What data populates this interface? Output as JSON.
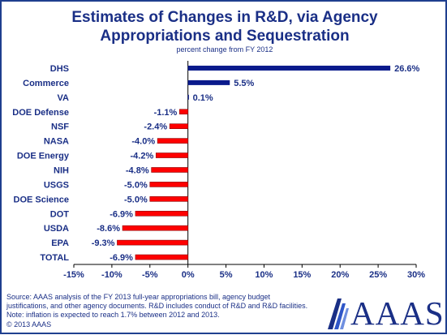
{
  "chart_data": {
    "type": "bar",
    "orientation": "horizontal",
    "title_line1": "Estimates of Changes in R&D, via Agency",
    "title_line2": "Appropriations and Sequestration",
    "subtitle": "percent change from FY 2012",
    "categories": [
      "DHS",
      "Commerce",
      "VA",
      "DOE Defense",
      "NSF",
      "NASA",
      "DOE Energy",
      "NIH",
      "USGS",
      "DOE Science",
      "DOT",
      "USDA",
      "EPA",
      "TOTAL"
    ],
    "values": [
      26.6,
      5.5,
      0.1,
      -1.1,
      -2.4,
      -4.0,
      -4.2,
      -4.8,
      -5.0,
      -5.0,
      -6.9,
      -8.6,
      -9.3,
      -6.9
    ],
    "value_labels": [
      "26.6%",
      "5.5%",
      "0.1%",
      "-1.1%",
      "-2.4%",
      "-4.0%",
      "-4.2%",
      "-4.8%",
      "-5.0%",
      "-5.0%",
      "-6.9%",
      "-8.6%",
      "-9.3%",
      "-6.9%"
    ],
    "xlim": [
      -15,
      30
    ],
    "xticks": [
      -15,
      -10,
      -5,
      0,
      5,
      10,
      15,
      20,
      25,
      30
    ],
    "xtick_labels": [
      "-15%",
      "-10%",
      "-5%",
      "0%",
      "5%",
      "10%",
      "15%",
      "20%",
      "25%",
      "30%"
    ],
    "xlabel": "",
    "ylabel": "",
    "grid": false,
    "colors": {
      "positive": "#0a1a8c",
      "negative": "#ff0000",
      "text": "#1a2f86",
      "border": "#1f3f8f"
    }
  },
  "footer": {
    "line1": "Source: AAAS analysis of the FY 2013 full-year appropriations bill, agency budget",
    "line2": "justifications, and other agency documents. R&D includes conduct of R&D and R&D facilities.",
    "line3": "Note: inflation is expected to reach 1.7% between 2012 and 2013.",
    "line4": "© 2013 AAAS"
  },
  "logo": {
    "text": "AAAS"
  }
}
